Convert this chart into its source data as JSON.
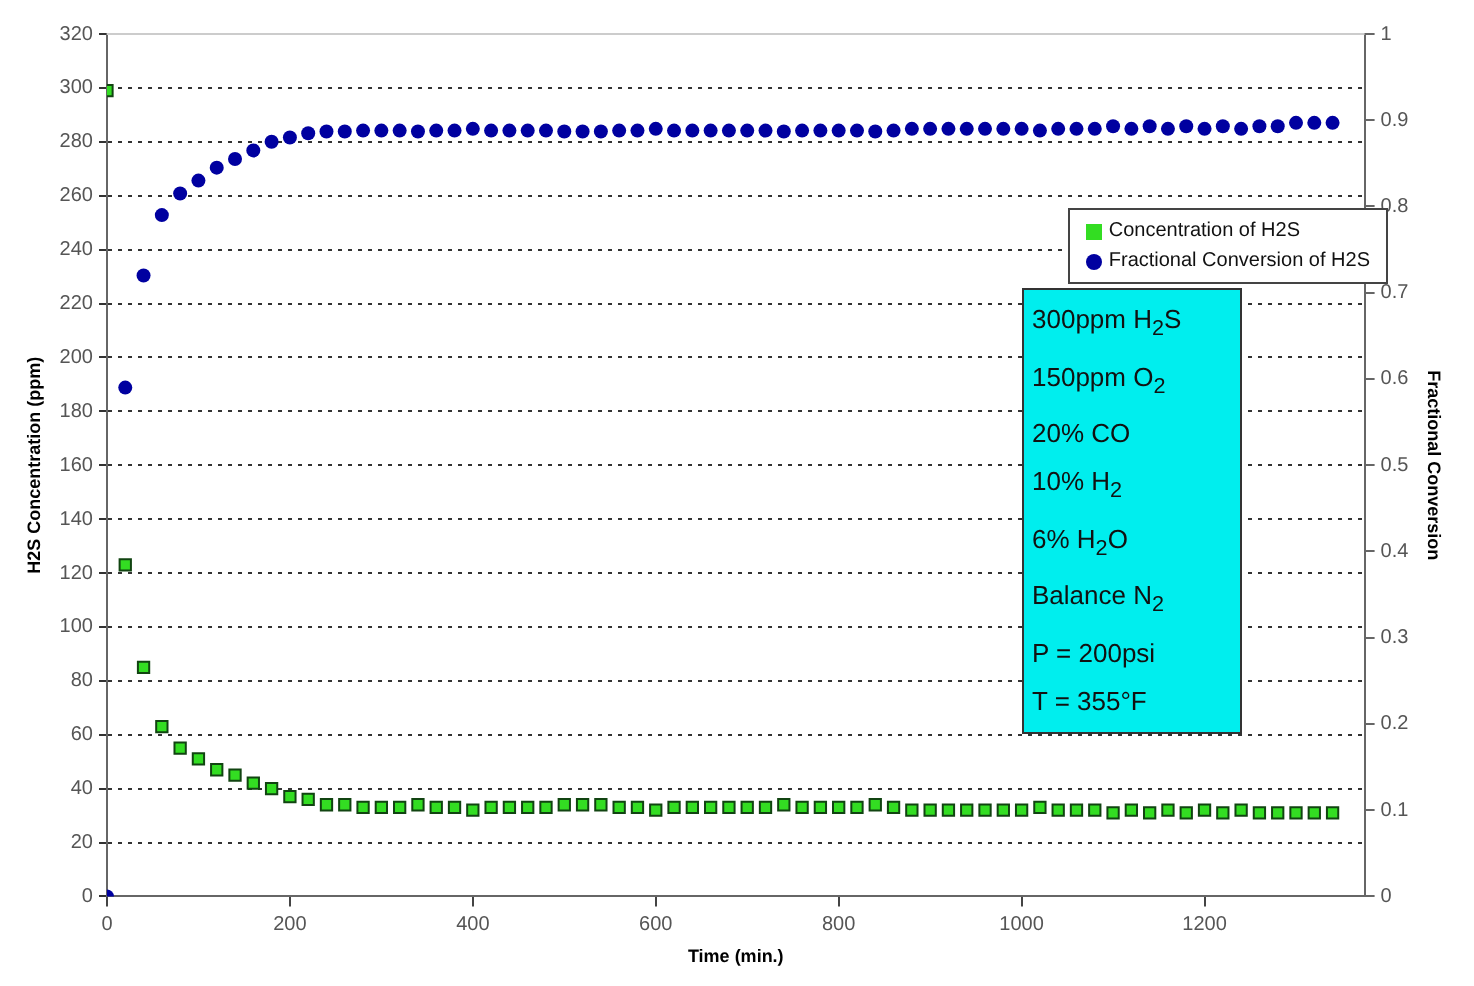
{
  "chart_data": {
    "type": "scatter",
    "xlabel": "Time (min.)",
    "ylabel": "H2S Concentration (ppm)",
    "y2label": "Fractional Conversion",
    "x": [
      0,
      20,
      40,
      60,
      80,
      100,
      120,
      140,
      160,
      180,
      200,
      220,
      240,
      260,
      280,
      300,
      320,
      340,
      360,
      380,
      400,
      420,
      440,
      460,
      480,
      500,
      520,
      540,
      560,
      580,
      600,
      620,
      640,
      660,
      680,
      700,
      720,
      740,
      760,
      780,
      800,
      820,
      840,
      860,
      880,
      900,
      920,
      940,
      960,
      980,
      1000,
      1020,
      1040,
      1060,
      1080,
      1100,
      1120,
      1140,
      1160,
      1180,
      1200,
      1220,
      1240,
      1260,
      1280,
      1300,
      1320,
      1340
    ],
    "series": [
      {
        "name": "Concentration of H2S",
        "color": "#33dd22",
        "marker": "square",
        "values": [
          299,
          123,
          85,
          63,
          55,
          51,
          47,
          45,
          42,
          40,
          37,
          36,
          34,
          34,
          33,
          33,
          33,
          34,
          33,
          33,
          32,
          33,
          33,
          33,
          33,
          34,
          34,
          34,
          33,
          33,
          32,
          33,
          33,
          33,
          33,
          33,
          33,
          34,
          33,
          33,
          33,
          33,
          34,
          33,
          32,
          32,
          32,
          32,
          32,
          32,
          32,
          33,
          32,
          32,
          32,
          31,
          32,
          31,
          32,
          31,
          32,
          31,
          32,
          31,
          31,
          31,
          31,
          31
        ]
      },
      {
        "name": "Fractional Conversion of H2S",
        "color": "#0000a0",
        "marker": "circle",
        "axis": "y2",
        "values": [
          0,
          0.59,
          0.72,
          0.79,
          0.815,
          0.83,
          0.845,
          0.855,
          0.865,
          0.875,
          0.88,
          0.885,
          0.887,
          0.887,
          0.888,
          0.888,
          0.888,
          0.887,
          0.888,
          0.888,
          0.89,
          0.888,
          0.888,
          0.888,
          0.888,
          0.887,
          0.887,
          0.887,
          0.888,
          0.888,
          0.89,
          0.888,
          0.888,
          0.888,
          0.888,
          0.888,
          0.888,
          0.887,
          0.888,
          0.888,
          0.888,
          0.888,
          0.887,
          0.888,
          0.89,
          0.89,
          0.89,
          0.89,
          0.89,
          0.89,
          0.89,
          0.888,
          0.89,
          0.89,
          0.89,
          0.893,
          0.89,
          0.893,
          0.89,
          0.893,
          0.89,
          0.893,
          0.89,
          0.893,
          0.893,
          0.897,
          0.897,
          0.897
        ]
      }
    ],
    "xlim": [
      0,
      1375
    ],
    "xticks": [
      0,
      200,
      400,
      600,
      800,
      1000,
      1200
    ],
    "ylim": [
      0,
      320
    ],
    "yticks": [
      0,
      20,
      40,
      60,
      80,
      100,
      120,
      140,
      160,
      180,
      200,
      220,
      240,
      260,
      280,
      300,
      320
    ],
    "y2lim": [
      0,
      1
    ],
    "y2ticks": [
      0,
      0.1,
      0.2,
      0.3,
      0.4,
      0.5,
      0.6,
      0.7,
      0.8,
      0.9,
      1
    ],
    "grid": "y",
    "legend": "right",
    "annotations": [
      "300ppm H$_{2}$S",
      "150ppm O$_{2}$",
      "20% CO",
      "10% H$_{2}$",
      "6% H$_{2}$O",
      "Balance N$_{2}$",
      "P = 200psi",
      "T = 355°F"
    ]
  }
}
